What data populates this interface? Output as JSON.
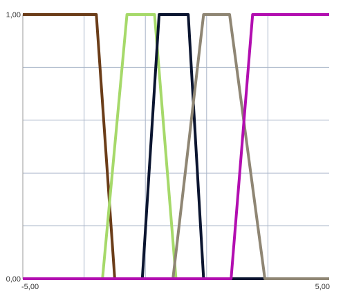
{
  "chart_data": {
    "type": "line",
    "title": "",
    "xlabel": "",
    "ylabel": "",
    "xlim": [
      -5,
      5
    ],
    "ylim": [
      0,
      1
    ],
    "x_ticks": [
      {
        "value": -5,
        "label": "-5,00"
      },
      {
        "value": 5,
        "label": "5,00"
      }
    ],
    "y_ticks": [
      {
        "value": 0,
        "label": "0,00"
      },
      {
        "value": 1,
        "label": "1,00"
      }
    ],
    "grid": {
      "vertical_lines": 5,
      "horizontal_lines": 5,
      "color": "#a8b4c8"
    },
    "legend": "none",
    "series": [
      {
        "color": "#6b3d19",
        "points": [
          [
            -5,
            1
          ],
          [
            -2.6,
            1
          ],
          [
            -2.0,
            0
          ],
          [
            5,
            0
          ]
        ]
      },
      {
        "color": "#a6d96a",
        "points": [
          [
            -5,
            0
          ],
          [
            -2.4,
            0
          ],
          [
            -1.6,
            1
          ],
          [
            -0.7,
            1
          ],
          [
            0.0,
            0
          ],
          [
            5,
            0
          ]
        ]
      },
      {
        "color": "#0b1530",
        "points": [
          [
            -5,
            0
          ],
          [
            -1.1,
            0
          ],
          [
            -0.55,
            1
          ],
          [
            0.4,
            1
          ],
          [
            0.9,
            0
          ],
          [
            5,
            0
          ]
        ]
      },
      {
        "color": "#8f8674",
        "points": [
          [
            -5,
            0
          ],
          [
            -0.1,
            0
          ],
          [
            0.9,
            1
          ],
          [
            1.75,
            1
          ],
          [
            2.9,
            0
          ],
          [
            5,
            0
          ]
        ]
      },
      {
        "color": "#b20eb0",
        "points": [
          [
            -5,
            0
          ],
          [
            1.8,
            0
          ],
          [
            2.5,
            1
          ],
          [
            5,
            1
          ]
        ]
      }
    ]
  }
}
